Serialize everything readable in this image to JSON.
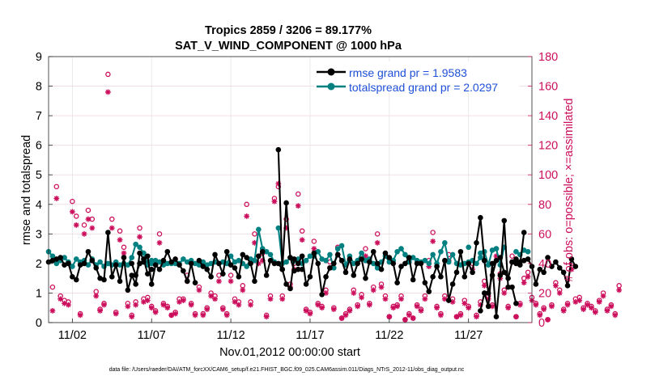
{
  "chart_data": {
    "type": "line",
    "title_line1": "Tropics 2859 / 3206 = 89.177%",
    "title_line2": "SAT_V_WIND_COMPONENT @ 1000 hPa",
    "xlabel": "Nov.01,2012 00:00:00 start",
    "ylabel_left": "rmse and totalspread",
    "ylabel_right": "# of obs: o=possible; ×=assimilated",
    "footer": "data file: /Users/raeder/DAI/ATM_forcXX/CAM6_setup/f.e21.FHIST_BGC.f09_025.CAM6assim.011/Diags_NTrS_2012-11/obs_diag_output.nc",
    "xlim": [
      0.5,
      31.0
    ],
    "ylim_left": [
      0,
      9
    ],
    "ylim_right": [
      0,
      180
    ],
    "xticks": [
      {
        "v": 2,
        "label": "11/02"
      },
      {
        "v": 7,
        "label": "11/07"
      },
      {
        "v": 12,
        "label": "11/12"
      },
      {
        "v": 17,
        "label": "11/17"
      },
      {
        "v": 22,
        "label": "11/22"
      },
      {
        "v": 27,
        "label": "11/27"
      }
    ],
    "yticks_left": [
      0,
      1,
      2,
      3,
      4,
      5,
      6,
      7,
      8,
      9
    ],
    "yticks_right": [
      0,
      20,
      40,
      60,
      80,
      100,
      120,
      140,
      160,
      180
    ],
    "colors": {
      "rmse": "#000000",
      "spread": "#008080",
      "obs": "#cc0f5c",
      "grid": "#e4e4e4"
    },
    "series": [
      {
        "name": "rmse",
        "legend": "rmse grand pr = 1.9583",
        "segments": [
          {
            "x0": 0.5,
            "values": [
              2.05,
              2.1,
              2.15,
              2.2,
              1.95,
              2.0,
              1.55,
              1.45,
              1.95,
              2.0,
              2.4,
              2.1,
              1.85,
              1.5,
              1.45,
              3.05,
              1.55,
              1.95,
              1.4,
              2.2,
              1.1,
              1.6,
              1.3,
              2.35,
              2.15,
              1.65,
              1.8
            ]
          },
          {
            "x0": 5.75,
            "values": [
              2.0,
              1.6,
              2.0,
              2.05,
              2.25,
              1.3,
              1.95,
              1.8,
              2.1,
              2.4,
              2.05,
              2.15,
              1.95,
              1.75,
              1.4,
              2.0,
              1.35
            ]
          },
          {
            "x0": 10.0,
            "values": [
              2.1,
              1.9,
              1.8,
              1.55,
              2.3,
              2.0,
              1.65,
              2.4,
              1.95,
              1.85,
              1.55,
              2.3,
              2.2,
              2.0,
              1.4,
              2.25,
              2.4,
              1.6,
              2.1,
              2.0,
              2.0,
              1.8,
              4.05,
              2.2,
              1.75,
              1.8,
              1.8
            ]
          },
          {
            "x0": 15.0,
            "values": [
              5.85,
              1.8,
              1.3,
              1.15,
              2.15,
              2.0,
              2.25,
              1.3,
              1.55,
              2.35,
              2.0,
              0.95,
              1.55,
              1.85,
              2.0,
              2.3,
              2.1,
              1.7,
              2.15,
              1.6,
              2.0,
              2.15,
              1.5,
              2.05,
              2.4,
              2.0,
              1.8,
              2.35,
              2.2,
              2.0,
              1.35,
              1.9,
              2.0,
              2.2,
              1.45,
              2.0,
              2.0,
              1.35,
              1.05,
              1.55,
              1.9,
              1.55,
              2.1,
              0.75,
              1.3,
              1.7,
              2.4,
              1.55,
              2.0,
              1.7,
              2.7,
              3.55,
              2.1,
              1.0,
              1.6,
              2.1,
              2.2,
              1.7,
              1.5,
              2.05,
              2.0,
              2.05,
              2.1,
              2.15,
              1.9,
              1.3,
              1.8,
              1.7,
              2.2,
              1.9,
              2.05,
              1.85,
              1.7,
              1.25,
              2.15,
              1.9
            ]
          },
          {
            "x0": 27.75,
            "values": [
              0.4,
              1.0,
              0.55,
              2.0,
              0.2,
              1.6,
              3.45,
              1.2,
              1.2,
              0.65
            ]
          },
          {
            "x0": 30.0,
            "values": [
              2.15,
              1.95,
              3.05
            ]
          }
        ]
      },
      {
        "name": "totalspread",
        "legend": "totalspread grand pr = 2.0297",
        "segments": [
          {
            "x0": 0.5,
            "values": [
              2.4,
              2.25,
              2.0,
              2.1,
              2.2,
              2.05,
              1.9,
              2.15,
              2.05,
              2.1,
              1.95,
              2.15,
              1.95,
              2.05,
              1.9,
              2.0,
              1.95,
              2.05,
              1.95,
              2.0,
              1.95,
              2.2,
              2.65,
              2.55,
              2.35,
              2.0,
              2.1
            ]
          },
          {
            "x0": 6.25,
            "values": [
              2.0,
              2.05,
              1.95,
              2.0,
              2.1,
              2.05,
              1.95,
              2.0,
              2.0
            ]
          },
          {
            "x0": 8.5,
            "values": [
              2.0,
              2.0,
              2.15,
              2.05,
              2.1,
              2.0,
              1.95,
              2.05,
              1.95,
              2.0,
              2.05,
              2.0,
              2.05,
              2.0,
              2.25,
              2.05,
              2.1,
              2.0,
              1.9,
              2.15,
              2.1,
              3.15,
              2.5,
              2.4,
              2.3,
              2.05
            ]
          },
          {
            "x0": 15.0,
            "values": [
              3.2,
              2.0,
              2.05,
              2.2,
              2.1,
              2.15,
              2.0,
              2.1,
              2.25,
              2.25,
              2.4,
              2.15,
              2.1,
              2.3,
              1.85,
              2.5,
              2.6,
              1.95,
              2.25,
              2.0,
              2.1,
              2.35,
              2.1,
              2.15,
              2.0,
              1.85,
              2.05,
              2.25,
              2.05,
              2.1,
              2.4,
              2.5,
              2.3,
              2.05,
              2.2,
              2.1,
              2.05,
              2.1,
              2.0,
              2.3,
              2.0,
              2.4,
              2.7,
              2.05,
              2.3,
              2.0,
              1.95,
              2.0,
              2.05,
              2.1,
              2.0,
              2.2,
              2.1
            ]
          },
          {
            "x0": 27.0,
            "values": [
              2.55
            ]
          },
          {
            "x0": 27.75,
            "values": [
              2.35,
              2.4,
              1.95,
              2.45,
              2.5,
              1.95,
              2.55
            ]
          },
          {
            "x0": 30.0,
            "values": [
              2.4,
              2.3,
              2.45,
              2.4
            ]
          }
        ]
      }
    ],
    "obs_counts": {
      "possible_x0": 0.75,
      "possible_dx": 0.25,
      "possible": [
        24,
        92,
        18,
        15,
        14,
        82,
        72,
        6,
        66,
        76,
        70,
        21,
        9,
        13,
        168,
        70,
        7,
        62,
        51,
        13,
        5,
        14,
        64,
        16,
        17,
        11,
        8,
        60,
        13,
        11,
        5,
        7,
        16,
        16,
        32,
        13,
        6,
        24,
        6,
        10,
        20,
        18,
        32,
        10,
        6,
        32,
        16,
        14,
        25,
        80,
        14,
        60,
        45,
        47,
        5,
        18,
        84,
        92,
        18,
        70,
        26,
        40,
        87,
        62,
        9,
        7,
        55,
        13,
        11,
        22,
        41,
        10,
        51,
        3,
        6,
        9,
        22,
        12,
        19,
        50,
        13,
        24,
        60,
        26,
        18,
        4,
        11,
        12,
        18,
        2,
        6,
        3,
        12,
        9,
        18,
        42,
        61,
        11,
        6,
        18,
        46,
        16,
        4,
        6,
        15,
        11,
        40,
        5,
        14,
        28,
        18,
        12,
        50,
        33,
        22,
        11,
        45,
        4,
        13,
        30,
        34,
        17,
        13,
        6,
        10,
        2,
        12,
        27,
        22,
        9,
        13,
        40,
        16,
        17,
        10,
        13,
        11,
        8,
        15,
        20,
        9,
        12,
        6,
        25
      ],
      "assimilated_x0": 0.75,
      "assimilated_dx": 0.25,
      "assimilated": [
        8,
        84,
        16,
        13,
        12,
        75,
        66,
        5,
        60,
        70,
        64,
        18,
        8,
        12,
        156,
        64,
        6,
        56,
        47,
        11,
        4,
        12,
        58,
        14,
        15,
        10,
        7,
        54,
        12,
        10,
        5,
        6,
        14,
        15,
        28,
        12,
        5,
        22,
        5,
        9,
        18,
        16,
        28,
        9,
        5,
        28,
        14,
        12,
        22,
        72,
        12,
        54,
        40,
        42,
        4,
        16,
        82,
        94,
        16,
        64,
        24,
        36,
        79,
        56,
        8,
        6,
        50,
        12,
        10,
        20,
        37,
        9,
        46,
        3,
        5,
        8,
        20,
        11,
        17,
        45,
        12,
        22,
        54,
        24,
        16,
        4,
        10,
        11,
        16,
        2,
        5,
        3,
        11,
        8,
        16,
        38,
        55,
        10,
        5,
        16,
        42,
        14,
        4,
        5,
        13,
        10,
        36,
        4,
        12,
        25,
        16,
        11,
        45,
        30,
        20,
        10,
        41,
        4,
        12,
        27,
        31,
        15,
        12,
        5,
        9,
        2,
        11,
        25,
        20,
        8,
        12,
        36,
        14,
        15,
        9,
        12,
        10,
        7,
        14,
        18,
        8,
        11,
        5,
        22
      ]
    }
  }
}
